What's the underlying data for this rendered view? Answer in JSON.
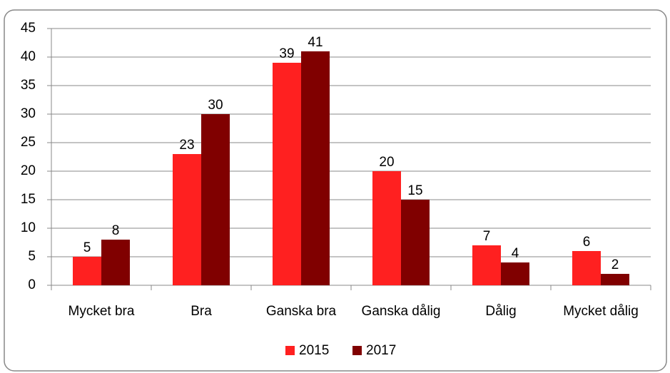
{
  "chart_data": {
    "type": "bar",
    "categories": [
      "Mycket bra",
      "Bra",
      "Ganska bra",
      "Ganska dålig",
      "Dålig",
      "Mycket dålig"
    ],
    "series": [
      {
        "name": "2015",
        "color": "#ff2020",
        "values": [
          5,
          23,
          39,
          20,
          7,
          6
        ]
      },
      {
        "name": "2017",
        "color": "#800000",
        "values": [
          8,
          30,
          41,
          15,
          4,
          2
        ]
      }
    ],
    "ylim": [
      0,
      45
    ],
    "yticks": [
      0,
      5,
      10,
      15,
      20,
      25,
      30,
      35,
      40,
      45
    ],
    "grid": true,
    "legend": "bottom"
  }
}
